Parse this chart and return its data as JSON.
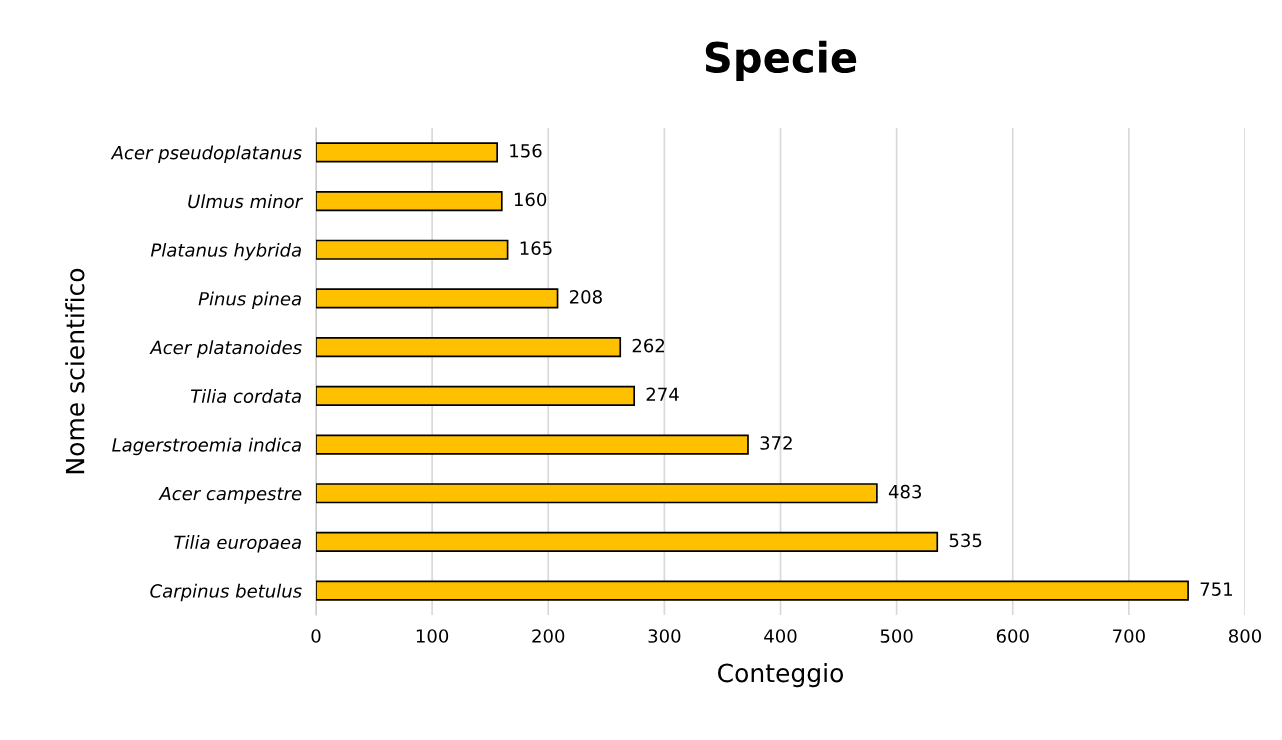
{
  "chart_data": {
    "type": "bar",
    "orientation": "horizontal",
    "title": "Specie",
    "xlabel": "Conteggio",
    "ylabel": "Nome scientifico",
    "categories": [
      "Acer pseudoplatanus",
      "Ulmus minor",
      "Platanus hybrida",
      "Pinus pinea",
      "Acer platanoides",
      "Tilia cordata",
      "Lagerstroemia indica",
      "Acer campestre",
      "Tilia europaea",
      "Carpinus betulus"
    ],
    "values": [
      156,
      160,
      165,
      208,
      262,
      274,
      372,
      483,
      535,
      751
    ],
    "color": "#ffc000",
    "xlim": [
      0,
      800
    ],
    "xticks": [
      0,
      100,
      200,
      300,
      400,
      500,
      600,
      700,
      800
    ],
    "grid": "x",
    "data_labels": true,
    "legend": false
  }
}
